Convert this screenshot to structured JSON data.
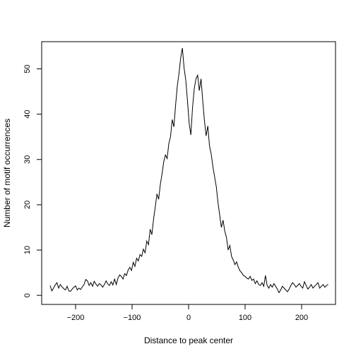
{
  "chart_data": {
    "type": "line",
    "title": "",
    "xlabel": "Distance to peak center",
    "ylabel": "Number of motif occurrences",
    "xlim": [
      -260,
      260
    ],
    "ylim": [
      -2,
      56
    ],
    "xticks": [
      -200,
      -100,
      0,
      100,
      200
    ],
    "xtick_labels": [
      "−200",
      "−100",
      "0",
      "100",
      "200"
    ],
    "yticks": [
      0,
      10,
      20,
      30,
      40,
      50
    ],
    "ytick_labels": [
      "0",
      "10",
      "20",
      "30",
      "40",
      "50"
    ],
    "grid": false,
    "legend": "none",
    "series": [
      {
        "color": "#000000",
        "x": [
          -245,
          -242,
          -239,
          -236,
          -233,
          -230,
          -227,
          -224,
          -221,
          -218,
          -215,
          -212,
          -209,
          -206,
          -203,
          -200,
          -197,
          -194,
          -191,
          -188,
          -185,
          -182,
          -179,
          -176,
          -173,
          -170,
          -167,
          -164,
          -161,
          -158,
          -155,
          -152,
          -149,
          -146,
          -143,
          -140,
          -137,
          -134,
          -131,
          -128,
          -125,
          -122,
          -119,
          -116,
          -113,
          -110,
          -107,
          -104,
          -101,
          -98,
          -95,
          -92,
          -89,
          -86,
          -83,
          -80,
          -77,
          -74,
          -71,
          -68,
          -65,
          -62,
          -59,
          -56,
          -53,
          -50,
          -47,
          -44,
          -41,
          -38,
          -35,
          -32,
          -29,
          -26,
          -23,
          -20,
          -17,
          -14,
          -11,
          -8,
          -5,
          -2,
          1,
          4,
          7,
          10,
          13,
          16,
          19,
          22,
          25,
          28,
          31,
          34,
          37,
          40,
          43,
          46,
          49,
          52,
          55,
          58,
          61,
          64,
          67,
          70,
          73,
          76,
          79,
          82,
          85,
          88,
          91,
          94,
          97,
          100,
          103,
          106,
          109,
          112,
          115,
          118,
          121,
          124,
          127,
          130,
          133,
          136,
          139,
          142,
          145,
          148,
          151,
          154,
          157,
          160,
          163,
          166,
          169,
          172,
          175,
          178,
          181,
          184,
          187,
          190,
          193,
          196,
          199,
          202,
          205,
          208,
          211,
          214,
          217,
          220,
          223,
          226,
          229,
          232,
          235,
          238,
          241,
          244,
          247
        ],
        "y": [
          2.2,
          1.0,
          1.6,
          2.3,
          2.8,
          1.6,
          2.4,
          1.9,
          1.5,
          1.2,
          2.0,
          1.0,
          0.9,
          1.4,
          1.8,
          2.1,
          1.2,
          1.6,
          1.3,
          1.9,
          2.4,
          3.5,
          3.2,
          2.2,
          2.8,
          2.0,
          3.1,
          2.5,
          2.0,
          2.6,
          2.3,
          1.8,
          2.4,
          3.2,
          2.5,
          2.2,
          3.0,
          2.3,
          3.6,
          2.4,
          3.8,
          4.5,
          4.2,
          3.6,
          4.8,
          4.4,
          5.6,
          6.2,
          5.5,
          7.3,
          6.4,
          8.2,
          7.6,
          9.0,
          8.6,
          10.2,
          9.4,
          12.0,
          11.2,
          14.6,
          13.4,
          16.8,
          19.5,
          22.4,
          21.2,
          24.5,
          26.8,
          29.5,
          31.0,
          30.2,
          33.5,
          35.0,
          38.8,
          37.2,
          42.0,
          46.2,
          49.0,
          52.4,
          54.6,
          50.2,
          47.5,
          43.0,
          38.0,
          35.4,
          41.5,
          45.6,
          47.8,
          48.6,
          45.2,
          47.8,
          43.0,
          38.6,
          35.2,
          37.4,
          33.0,
          31.2,
          28.4,
          26.2,
          24.0,
          20.5,
          17.8,
          15.0,
          16.6,
          14.2,
          12.8,
          10.0,
          11.0,
          8.6,
          7.8,
          6.8,
          7.4,
          6.2,
          5.4,
          5.0,
          4.4,
          4.2,
          3.8,
          3.6,
          4.2,
          3.3,
          3.6,
          2.6,
          3.2,
          2.4,
          2.2,
          2.8,
          2.0,
          4.4,
          2.2,
          1.6,
          2.4,
          1.8,
          2.6,
          2.0,
          1.4,
          0.6,
          1.2,
          2.0,
          1.6,
          1.2,
          0.8,
          1.4,
          2.2,
          2.8,
          2.4,
          1.8,
          2.2,
          2.6,
          2.0,
          1.6,
          3.0,
          2.2,
          1.4,
          1.8,
          2.4,
          1.6,
          2.0,
          2.4,
          2.8,
          1.6,
          2.0,
          2.4,
          1.8,
          2.2,
          2.4
        ]
      }
    ]
  }
}
